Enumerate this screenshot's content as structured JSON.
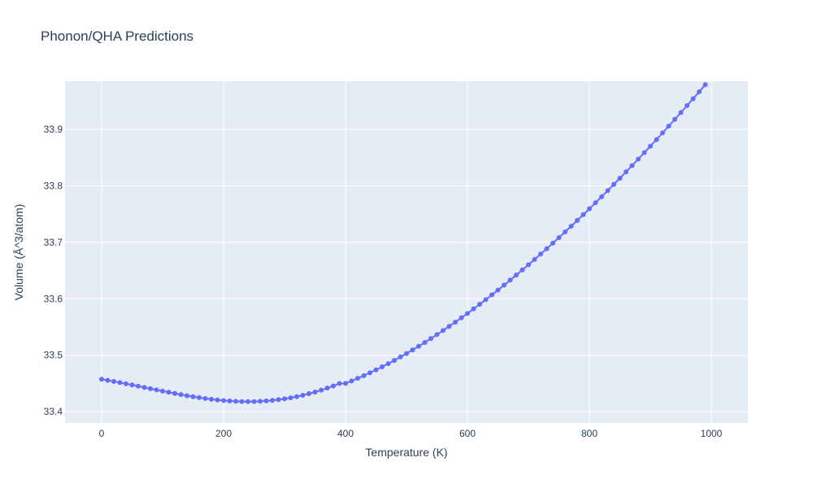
{
  "chart_data": {
    "type": "scatter",
    "mode": "lines+markers",
    "title": "Phonon/QHA Predictions",
    "xlabel": "Temperature (K)",
    "ylabel": "Volume (Å^3/atom)",
    "xlim": [
      -60,
      1060
    ],
    "ylim": [
      33.38,
      33.985
    ],
    "x_ticks": [
      0,
      200,
      400,
      600,
      800,
      1000
    ],
    "x_tick_labels": [
      "0",
      "200",
      "400",
      "600",
      "800",
      "1000"
    ],
    "y_ticks": [
      33.4,
      33.5,
      33.6,
      33.7,
      33.8,
      33.9
    ],
    "y_tick_labels": [
      "33.4",
      "33.5",
      "33.6",
      "33.7",
      "33.8",
      "33.9"
    ],
    "grid": true,
    "legend": "none",
    "colors": {
      "plot_bg": "#e5ecf6",
      "grid": "#ffffff",
      "series": "#636efa",
      "text": "#2a3f5f"
    },
    "series": [
      {
        "x": [
          0,
          10,
          20,
          30,
          40,
          50,
          60,
          70,
          80,
          90,
          100,
          110,
          120,
          130,
          140,
          150,
          160,
          170,
          180,
          190,
          200,
          210,
          220,
          230,
          240,
          250,
          260,
          270,
          280,
          290,
          300,
          310,
          320,
          330,
          340,
          350,
          360,
          370,
          380,
          390,
          400,
          410,
          420,
          430,
          440,
          450,
          460,
          470,
          480,
          490,
          500,
          510,
          520,
          530,
          540,
          550,
          560,
          570,
          580,
          590,
          600,
          610,
          620,
          630,
          640,
          650,
          660,
          670,
          680,
          690,
          700,
          710,
          720,
          730,
          740,
          750,
          760,
          770,
          780,
          790,
          800,
          810,
          820,
          830,
          840,
          850,
          860,
          870,
          880,
          890,
          900,
          910,
          920,
          930,
          940,
          950,
          960,
          970,
          980,
          990
        ],
        "y": [
          33.4574,
          33.4555,
          33.4535,
          33.4515,
          33.4494,
          33.4473,
          33.4451,
          33.4429,
          33.4407,
          33.4385,
          33.4364,
          33.4343,
          33.4322,
          33.4302,
          33.4283,
          33.4265,
          33.4248,
          33.4233,
          33.4219,
          33.4207,
          33.4197,
          33.4189,
          33.4183,
          33.4179,
          33.4178,
          33.4179,
          33.4183,
          33.419,
          33.4199,
          33.4212,
          33.4227,
          33.4245,
          33.4266,
          33.429,
          33.4318,
          33.4348,
          33.4381,
          33.4417,
          33.4456,
          33.4498,
          33.45,
          33.4544,
          33.459,
          33.4638,
          33.4688,
          33.474,
          33.4794,
          33.485,
          33.4908,
          33.4968,
          33.503,
          33.5093,
          33.5158,
          33.5225,
          33.5294,
          33.5364,
          33.5436,
          33.551,
          33.5585,
          33.5662,
          33.574,
          33.582,
          33.5901,
          33.5984,
          33.6068,
          33.6154,
          33.6241,
          33.6329,
          33.6419,
          33.651,
          33.6602,
          33.6696,
          33.6791,
          33.6887,
          33.6984,
          33.7083,
          33.7183,
          33.7284,
          33.7386,
          33.7489,
          33.7594,
          33.77,
          33.7807,
          33.7915,
          33.8024,
          33.8134,
          33.8246,
          33.8358,
          33.8472,
          33.8587,
          33.8702,
          33.8819,
          33.8937,
          33.9056,
          33.9176,
          33.9297,
          33.9419,
          33.9541,
          33.9665,
          33.979
        ]
      }
    ]
  }
}
